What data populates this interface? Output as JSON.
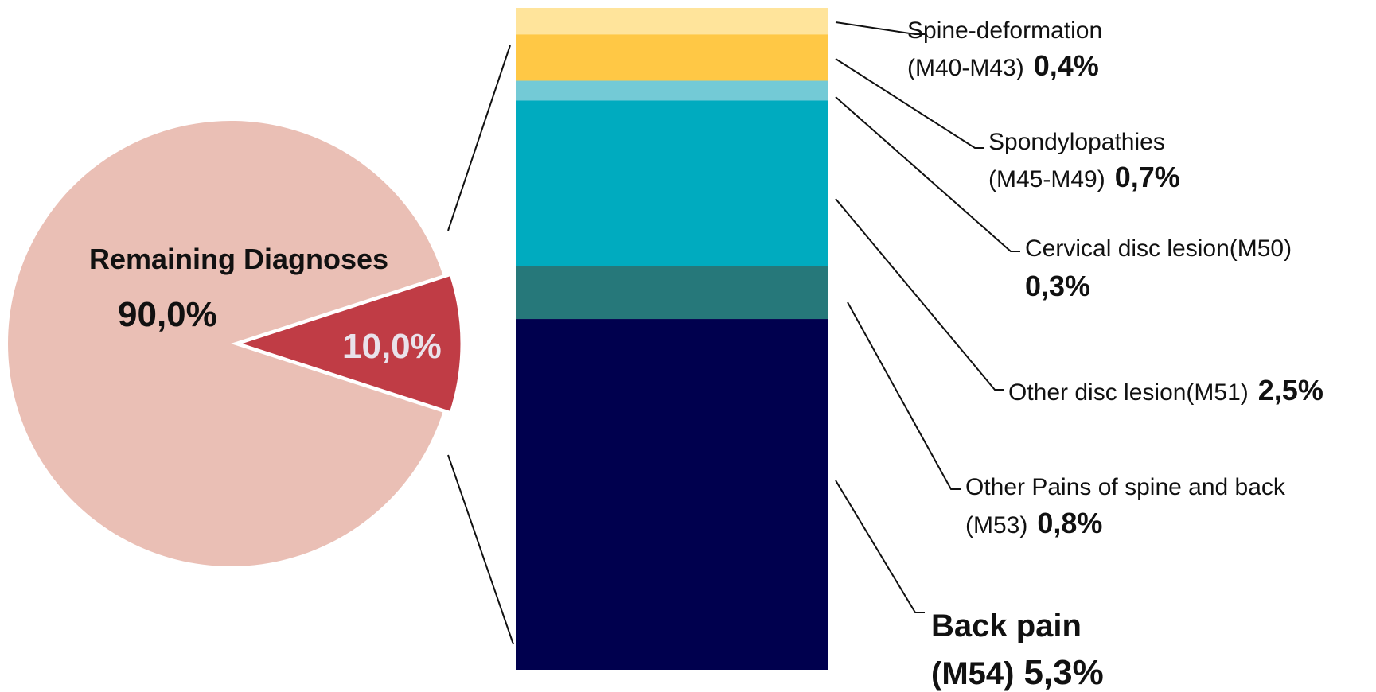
{
  "chart_data": [
    {
      "type": "pie",
      "slices": [
        {
          "label": "Remaining Diagnoses",
          "value": 90.0,
          "value_label": "90,0%",
          "color": "#EABFB5"
        },
        {
          "label": "",
          "value": 10.0,
          "value_label": "10,0%",
          "color": "#C03C45"
        }
      ]
    },
    {
      "type": "bar",
      "stacked": true,
      "segments": [
        {
          "label_line1": "Spine-deformation",
          "label_line2": "(M40-M43)",
          "value": 0.4,
          "value_label": "0,4%",
          "color": "#FFE49B"
        },
        {
          "label_line1": "Spondylopathies",
          "label_line2": "(M45-M49)",
          "value": 0.7,
          "value_label": "0,7%",
          "color": "#FFC845"
        },
        {
          "label_line1": "Cervical disc lesion(M50)",
          "label_line2": "",
          "value": 0.3,
          "value_label": "0,3%",
          "color": "#73CAD6"
        },
        {
          "label_line1": "Other disc lesion(M51)",
          "label_line2": "",
          "value": 2.5,
          "value_label": "2,5%",
          "color": "#00ABBF"
        },
        {
          "label_line1": "Other Pains of spine and back",
          "label_line2": "(M53)",
          "value": 0.8,
          "value_label": "0,8%",
          "color": "#26787A"
        },
        {
          "label_line1": "Back pain",
          "label_line2": "(M54)",
          "value": 5.3,
          "value_label": "5,3%",
          "color": "#00004E"
        }
      ]
    }
  ]
}
